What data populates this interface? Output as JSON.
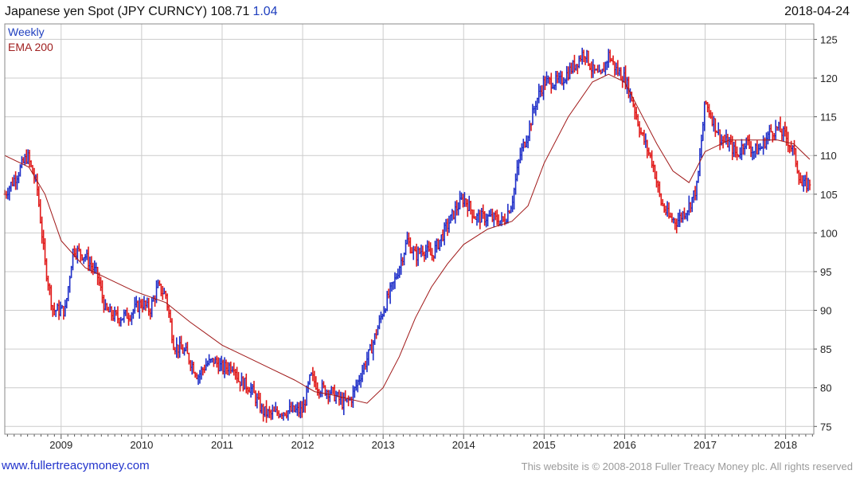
{
  "header": {
    "instrument": "Japanese yen Spot (JPY CURNCY)",
    "last_price": "108.71",
    "change": "1.04",
    "date": "2018-04-24"
  },
  "footer": {
    "site_link": "www.fullertreacymoney.com",
    "copyright": "This website is © 2008-2018 Fuller Treacy Money plc. All rights reserved"
  },
  "colors": {
    "up_bar": "#1f2fc8",
    "down_bar": "#e01818",
    "ema_line": "#a01818",
    "grid": "#cccccc",
    "weekly_legend": "#1f3fbf",
    "ema_legend": "#a02020"
  },
  "chart_data": {
    "type": "line",
    "subtype": "weekly price bars (OHLC) with moving average",
    "legend": [
      "Weekly",
      "EMA 200"
    ],
    "legend_position": "top-left",
    "x_tick_labels": [
      "2009",
      "2010",
      "2011",
      "2012",
      "2013",
      "2014",
      "2015",
      "2016",
      "2017",
      "2018"
    ],
    "y_ticks": [
      75,
      80,
      85,
      90,
      95,
      100,
      105,
      110,
      115,
      120,
      125
    ],
    "ylim": [
      74,
      127
    ],
    "xlim": [
      2008.3,
      2018.35
    ],
    "grid": true,
    "y_axis_side": "right",
    "series": [
      {
        "name": "Weekly",
        "x": [
          2008.3,
          2008.45,
          2008.58,
          2008.7,
          2008.8,
          2008.9,
          2009.05,
          2009.15,
          2009.3,
          2009.45,
          2009.55,
          2009.7,
          2009.85,
          2010.0,
          2010.1,
          2010.2,
          2010.3,
          2010.4,
          2010.55,
          2010.7,
          2010.8,
          2010.9,
          2011.0,
          2011.15,
          2011.2,
          2011.35,
          2011.5,
          2011.6,
          2011.75,
          2011.9,
          2012.0,
          2012.1,
          2012.2,
          2012.35,
          2012.5,
          2012.6,
          2012.75,
          2012.85,
          2013.0,
          2013.15,
          2013.3,
          2013.4,
          2013.5,
          2013.6,
          2013.75,
          2013.9,
          2014.0,
          2014.15,
          2014.3,
          2014.5,
          2014.6,
          2014.7,
          2014.8,
          2014.9,
          2015.0,
          2015.2,
          2015.4,
          2015.5,
          2015.6,
          2015.7,
          2015.8,
          2015.9,
          2016.0,
          2016.1,
          2016.2,
          2016.35,
          2016.45,
          2016.55,
          2016.65,
          2016.8,
          2016.9,
          2017.0,
          2017.1,
          2017.2,
          2017.3,
          2017.4,
          2017.5,
          2017.6,
          2017.7,
          2017.8,
          2017.9,
          2018.0,
          2018.1,
          2018.2,
          2018.3
        ],
        "close": [
          105,
          107.5,
          110,
          106,
          96,
          90,
          90,
          98,
          97,
          94.5,
          90,
          89,
          89.5,
          91,
          90,
          93,
          92,
          85.5,
          84.5,
          81.5,
          83,
          83.5,
          82.5,
          83,
          81,
          80,
          77,
          76.5,
          77,
          77,
          77,
          81.5,
          80,
          79.5,
          78,
          78.5,
          82.5,
          85,
          90,
          94,
          99,
          97,
          98,
          97,
          100,
          103,
          104.5,
          102,
          102,
          101.5,
          104,
          110,
          113,
          117,
          119.5,
          119.5,
          122,
          123.5,
          121,
          120,
          123,
          121,
          120,
          117,
          113,
          109,
          104,
          102,
          101.5,
          103.5,
          106,
          117,
          114.5,
          112,
          111.5,
          110,
          112,
          110.5,
          111,
          113,
          113.5,
          112.5,
          110.5,
          106,
          106.5
        ]
      },
      {
        "name": "EMA 200",
        "x": [
          2008.3,
          2008.6,
          2008.8,
          2009.0,
          2009.3,
          2009.6,
          2009.9,
          2010.3,
          2010.6,
          2011.0,
          2011.3,
          2011.6,
          2011.9,
          2012.15,
          2012.4,
          2012.6,
          2012.8,
          2013.0,
          2013.2,
          2013.4,
          2013.6,
          2013.8,
          2014.0,
          2014.3,
          2014.6,
          2014.8,
          2015.0,
          2015.3,
          2015.6,
          2015.8,
          2016.0,
          2016.2,
          2016.4,
          2016.6,
          2016.8,
          2017.0,
          2017.3,
          2017.6,
          2017.9,
          2018.1,
          2018.3
        ],
        "values": [
          110,
          108.5,
          105,
          99,
          95.5,
          94,
          92.5,
          91,
          88.5,
          85.5,
          84,
          82.5,
          81,
          79.5,
          79,
          78.5,
          78,
          80,
          84,
          89,
          93,
          96,
          98.5,
          100.5,
          101.5,
          103.5,
          109,
          115,
          119.5,
          120.5,
          119.5,
          115.5,
          111.5,
          108,
          106.5,
          110.5,
          112,
          112,
          112,
          111.5,
          109.5
        ]
      }
    ]
  }
}
